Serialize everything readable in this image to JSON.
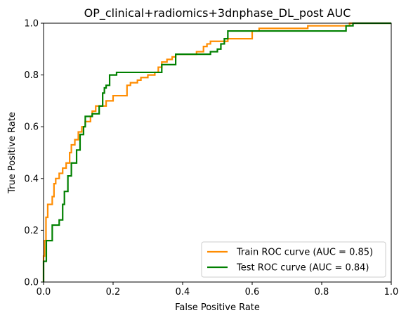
{
  "chart_data": {
    "type": "line",
    "title": "OP_clinical+radiomics+3dnphase_DL_post AUC",
    "xlabel": "False Positive Rate",
    "ylabel": "True Positive Rate",
    "xlim": [
      0.0,
      1.0
    ],
    "ylim": [
      0.0,
      1.0
    ],
    "xticks": [
      "0.0",
      "0.2",
      "0.4",
      "0.6",
      "0.8",
      "1.0"
    ],
    "yticks": [
      "0.0",
      "0.2",
      "0.4",
      "0.6",
      "0.8",
      "1.0"
    ],
    "grid": false,
    "legend_position": "lower-right",
    "series": [
      {
        "name": "Train ROC curve (AUC = 0.85)",
        "color": "#ff8c00",
        "points": [
          [
            0.0,
            0.0
          ],
          [
            0.0,
            0.1
          ],
          [
            0.003,
            0.1
          ],
          [
            0.003,
            0.16
          ],
          [
            0.007,
            0.16
          ],
          [
            0.007,
            0.25
          ],
          [
            0.012,
            0.25
          ],
          [
            0.012,
            0.3
          ],
          [
            0.025,
            0.3
          ],
          [
            0.025,
            0.33
          ],
          [
            0.03,
            0.33
          ],
          [
            0.03,
            0.38
          ],
          [
            0.035,
            0.38
          ],
          [
            0.035,
            0.4
          ],
          [
            0.045,
            0.4
          ],
          [
            0.045,
            0.42
          ],
          [
            0.055,
            0.42
          ],
          [
            0.055,
            0.44
          ],
          [
            0.065,
            0.44
          ],
          [
            0.065,
            0.46
          ],
          [
            0.075,
            0.46
          ],
          [
            0.075,
            0.5
          ],
          [
            0.08,
            0.5
          ],
          [
            0.08,
            0.53
          ],
          [
            0.09,
            0.53
          ],
          [
            0.09,
            0.55
          ],
          [
            0.1,
            0.55
          ],
          [
            0.1,
            0.58
          ],
          [
            0.11,
            0.58
          ],
          [
            0.11,
            0.6
          ],
          [
            0.12,
            0.6
          ],
          [
            0.12,
            0.62
          ],
          [
            0.135,
            0.62
          ],
          [
            0.135,
            0.64
          ],
          [
            0.14,
            0.64
          ],
          [
            0.14,
            0.66
          ],
          [
            0.15,
            0.66
          ],
          [
            0.15,
            0.68
          ],
          [
            0.18,
            0.68
          ],
          [
            0.18,
            0.7
          ],
          [
            0.2,
            0.7
          ],
          [
            0.2,
            0.72
          ],
          [
            0.24,
            0.72
          ],
          [
            0.24,
            0.76
          ],
          [
            0.25,
            0.76
          ],
          [
            0.25,
            0.77
          ],
          [
            0.27,
            0.77
          ],
          [
            0.27,
            0.78
          ],
          [
            0.28,
            0.78
          ],
          [
            0.28,
            0.79
          ],
          [
            0.3,
            0.79
          ],
          [
            0.3,
            0.8
          ],
          [
            0.32,
            0.8
          ],
          [
            0.32,
            0.81
          ],
          [
            0.33,
            0.81
          ],
          [
            0.33,
            0.83
          ],
          [
            0.34,
            0.83
          ],
          [
            0.34,
            0.85
          ],
          [
            0.355,
            0.85
          ],
          [
            0.355,
            0.86
          ],
          [
            0.37,
            0.86
          ],
          [
            0.37,
            0.87
          ],
          [
            0.38,
            0.87
          ],
          [
            0.38,
            0.88
          ],
          [
            0.44,
            0.88
          ],
          [
            0.44,
            0.89
          ],
          [
            0.46,
            0.89
          ],
          [
            0.46,
            0.91
          ],
          [
            0.47,
            0.91
          ],
          [
            0.47,
            0.92
          ],
          [
            0.48,
            0.92
          ],
          [
            0.48,
            0.93
          ],
          [
            0.53,
            0.93
          ],
          [
            0.53,
            0.94
          ],
          [
            0.6,
            0.94
          ],
          [
            0.6,
            0.97
          ],
          [
            0.62,
            0.97
          ],
          [
            0.62,
            0.98
          ],
          [
            0.76,
            0.98
          ],
          [
            0.76,
            0.99
          ],
          [
            0.88,
            0.99
          ],
          [
            0.88,
            1.0
          ],
          [
            1.0,
            1.0
          ]
        ]
      },
      {
        "name": "Test ROC curve (AUC = 0.84)",
        "color": "#008000",
        "points": [
          [
            0.0,
            0.0
          ],
          [
            0.0,
            0.08
          ],
          [
            0.008,
            0.08
          ],
          [
            0.008,
            0.16
          ],
          [
            0.025,
            0.16
          ],
          [
            0.025,
            0.22
          ],
          [
            0.045,
            0.22
          ],
          [
            0.045,
            0.24
          ],
          [
            0.055,
            0.24
          ],
          [
            0.055,
            0.3
          ],
          [
            0.06,
            0.3
          ],
          [
            0.06,
            0.35
          ],
          [
            0.07,
            0.35
          ],
          [
            0.07,
            0.41
          ],
          [
            0.08,
            0.41
          ],
          [
            0.08,
            0.46
          ],
          [
            0.095,
            0.46
          ],
          [
            0.095,
            0.51
          ],
          [
            0.105,
            0.51
          ],
          [
            0.105,
            0.57
          ],
          [
            0.115,
            0.57
          ],
          [
            0.115,
            0.6
          ],
          [
            0.12,
            0.6
          ],
          [
            0.12,
            0.64
          ],
          [
            0.14,
            0.64
          ],
          [
            0.14,
            0.65
          ],
          [
            0.16,
            0.65
          ],
          [
            0.16,
            0.68
          ],
          [
            0.17,
            0.68
          ],
          [
            0.17,
            0.73
          ],
          [
            0.175,
            0.73
          ],
          [
            0.175,
            0.75
          ],
          [
            0.18,
            0.75
          ],
          [
            0.18,
            0.76
          ],
          [
            0.19,
            0.76
          ],
          [
            0.19,
            0.8
          ],
          [
            0.21,
            0.8
          ],
          [
            0.21,
            0.81
          ],
          [
            0.34,
            0.81
          ],
          [
            0.34,
            0.84
          ],
          [
            0.38,
            0.84
          ],
          [
            0.38,
            0.88
          ],
          [
            0.48,
            0.88
          ],
          [
            0.48,
            0.89
          ],
          [
            0.5,
            0.89
          ],
          [
            0.5,
            0.9
          ],
          [
            0.51,
            0.9
          ],
          [
            0.51,
            0.92
          ],
          [
            0.52,
            0.92
          ],
          [
            0.52,
            0.94
          ],
          [
            0.53,
            0.94
          ],
          [
            0.53,
            0.97
          ],
          [
            0.87,
            0.97
          ],
          [
            0.87,
            0.99
          ],
          [
            0.89,
            0.99
          ],
          [
            0.89,
            1.0
          ],
          [
            1.0,
            1.0
          ]
        ]
      }
    ]
  }
}
